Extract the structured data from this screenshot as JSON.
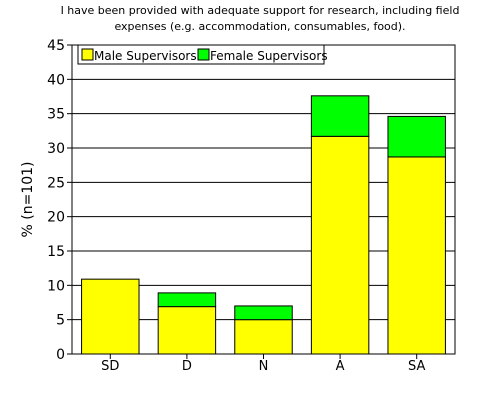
{
  "chart_data": {
    "type": "bar",
    "stacked": true,
    "title_line1": "I have been provided with adequate support for research, including field",
    "title_line2": "expenses (e.g. accommodation, consumables, food).",
    "xlabel": "",
    "ylabel": "% (n=101)",
    "ylim": [
      0,
      45
    ],
    "yticks": [
      0,
      5,
      10,
      15,
      20,
      25,
      30,
      35,
      40,
      45
    ],
    "ytick_labels": [
      "0",
      "5",
      "10",
      "15",
      "20",
      "25",
      "30",
      "35",
      "40",
      "45"
    ],
    "grid": "horizontal",
    "legend_position": "top-left",
    "categories": [
      "SD",
      "D",
      "N",
      "A",
      "SA"
    ],
    "series": [
      {
        "name": "Male Supervisors",
        "color": "#ffff00",
        "values": [
          10.9,
          6.9,
          5.0,
          31.7,
          28.7
        ]
      },
      {
        "name": "Female Supervisors",
        "color": "#00ff00",
        "values": [
          0.0,
          2.0,
          2.0,
          5.9,
          5.9
        ]
      }
    ]
  }
}
